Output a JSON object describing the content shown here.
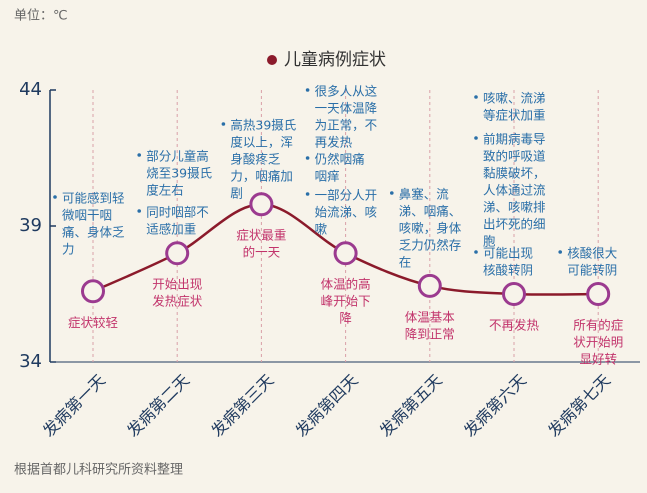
{
  "chart_data": {
    "type": "line",
    "unit": "单位：℃",
    "source": "根据首都儿科研究所资料整理",
    "categories": [
      "发病第一天",
      "发病第二天",
      "发病第三天",
      "发病第四天",
      "发病第五天",
      "发病第六天",
      "发病第七天"
    ],
    "series": [
      {
        "name": "儿童病例症状",
        "color": "#8b1a2b",
        "values": [
          36.6,
          38.0,
          39.8,
          38.0,
          36.8,
          36.5,
          36.5
        ]
      }
    ],
    "ylim": [
      34,
      44
    ],
    "yticks": [
      34,
      39,
      44
    ],
    "grid": false,
    "notes": [
      [
        [
          "可能感到轻",
          "微咽干咽",
          "痛、身体乏",
          "力"
        ]
      ],
      [
        [
          "部分儿童高",
          "烧至39摄氏",
          "度左右"
        ],
        [
          "同时咽部不",
          "适感加重"
        ]
      ],
      [
        [
          "高热39摄氏",
          "度以上，浑",
          "身酸疼乏",
          "力，咽痛加",
          "剧"
        ]
      ],
      [
        [
          "很多人从这",
          "一天体温降",
          "为正常，不",
          "再发热"
        ],
        [
          "仍然咽痛",
          "咽痒"
        ],
        [
          "一部分人开",
          "始流涕、咳",
          "嗽"
        ]
      ],
      [
        [
          "鼻塞、流",
          "涕、咽痛、",
          "咳嗽，身体",
          "乏力仍然存",
          "在"
        ]
      ],
      [
        [
          "咳嗽、流涕",
          "等症状加重"
        ],
        [
          "前期病毒导",
          "致的呼吸道",
          "黏膜破坏，",
          "人体通过流",
          "涕、咳嗽排",
          "出坏死的细",
          "胞"
        ],
        [
          "可能出现",
          "核酸转阴"
        ]
      ],
      [
        [
          "核酸很大",
          "可能转阴"
        ]
      ]
    ],
    "labels": [
      [
        "症状较轻"
      ],
      [
        "开始出现",
        "发热症状"
      ],
      [
        "症状最重",
        "的一天"
      ],
      [
        "体温的高",
        "峰开始下",
        "降"
      ],
      [
        "体温基本",
        "降到正常"
      ],
      [
        "不再发热"
      ],
      [
        "所有的症",
        "状开始明",
        "显好转"
      ]
    ]
  }
}
